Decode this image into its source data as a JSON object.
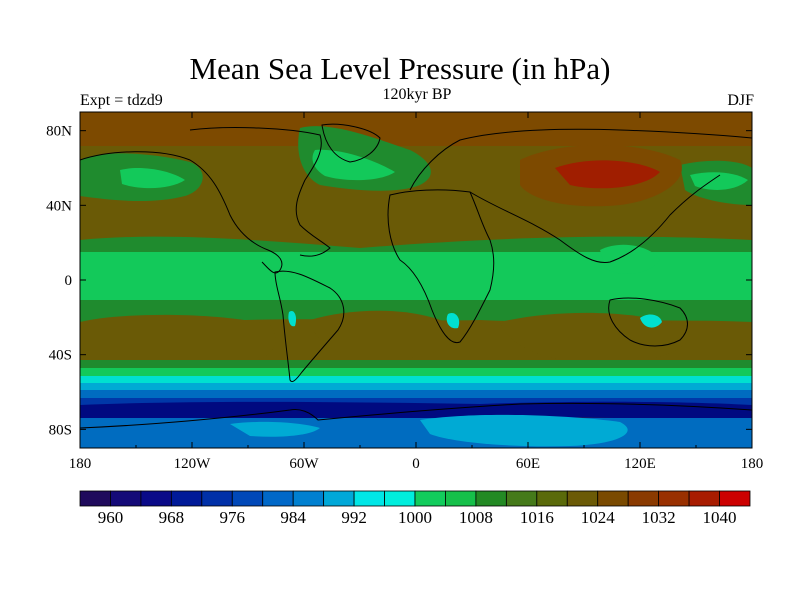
{
  "title": "Mean Sea Level Pressure (in hPa)",
  "subtitle": "120kyr BP",
  "left_label": "Expt = tdzd9",
  "right_label": "DJF",
  "map": {
    "x_ticks": [
      "180",
      "120W",
      "60W",
      "0",
      "60E",
      "120E",
      "180"
    ],
    "y_ticks": [
      "80N",
      "40N",
      "0",
      "40S",
      "80S"
    ],
    "longitude_range": [
      -180,
      180
    ],
    "latitude_range": [
      -90,
      90
    ],
    "field_colors": {
      "high_1024": "#7d4a00",
      "high_1020": "#6a5a06",
      "mid_1012": "#1f8b2e",
      "mid_1004": "#13c95a",
      "low_996": "#00e0d0",
      "low_990": "#00aad4",
      "low_984": "#006cc0",
      "low_978": "#0038a8",
      "low_970": "#000a80",
      "peak_1032": "#a01e00"
    }
  },
  "colorbar": {
    "labels": [
      "960",
      "968",
      "976",
      "984",
      "992",
      "1000",
      "1008",
      "1016",
      "1024",
      "1032",
      "1040"
    ],
    "colors": [
      "#1f0a5c",
      "#140a78",
      "#0a0a88",
      "#001a98",
      "#0030a8",
      "#0048b8",
      "#0068c8",
      "#0080d0",
      "#00a8d8",
      "#00e6e6",
      "#00eedd",
      "#12cc5c",
      "#16c04a",
      "#238a24",
      "#457a1a",
      "#5a6a0a",
      "#6b5a06",
      "#7a4a00",
      "#8a3a00",
      "#993000",
      "#a81c00",
      "#cc0000"
    ]
  }
}
